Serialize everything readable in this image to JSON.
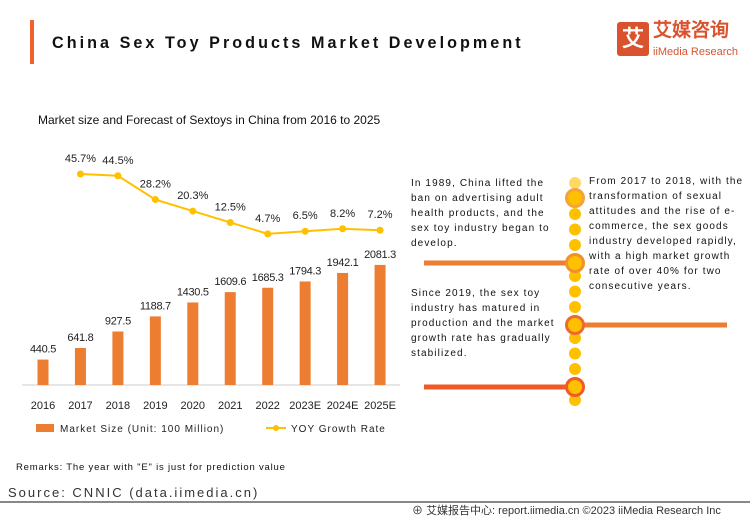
{
  "header": {
    "title": "China Sex Toy Products Market Development",
    "logo_icon": "艾",
    "logo_cn": "艾媒咨询",
    "logo_en": "iiMedia Research",
    "accent": "#f0612e"
  },
  "chart_data": {
    "type": "bar+line",
    "title": "Market size and Forecast of Sextoys in China from 2016 to 2025",
    "categories": [
      "2016",
      "2017",
      "2018",
      "2019",
      "2020",
      "2021",
      "2022",
      "2023E",
      "2024E",
      "2025E"
    ],
    "series": [
      {
        "name": "Market Size (Unit: 100 Million)",
        "type": "bar",
        "color": "#ed7d31",
        "values": [
          440.5,
          641.8,
          927.5,
          1188.7,
          1430.5,
          1609.6,
          1685.3,
          1794.3,
          1942.1,
          2081.3
        ],
        "labels": [
          "440.5",
          "641.8",
          "927.5",
          "1188.7",
          "1430.5",
          "1609.6",
          "1685.3",
          "1794.3",
          "1942.1",
          "2081.3"
        ]
      },
      {
        "name": "YOY Growth Rate",
        "type": "line",
        "color": "#ffc000",
        "values": [
          null,
          45.7,
          44.5,
          28.2,
          20.3,
          12.5,
          4.7,
          6.5,
          8.2,
          7.2
        ],
        "labels": [
          "",
          "45.7%",
          "44.5%",
          "28.2%",
          "20.3%",
          "12.5%",
          "4.7%",
          "6.5%",
          "8.2%",
          "7.2%"
        ]
      }
    ],
    "legend": "bottom"
  },
  "timeline": {
    "text_1989": "In 1989, China lifted the ban on advertising adult health products, and the sex toy industry began to develop.",
    "text_2017": "From 2017 to 2018, with the transformation of sexual attitudes and the rise of e-commerce, the sex goods industry developed rapidly, with a high market growth rate of over 40% for two consecutive years.",
    "text_2019": "Since 2019, the sex toy industry has matured in production and the market growth rate has gradually stabilized."
  },
  "remarks": "Remarks: The year with \"E\" is just for prediction value",
  "source": "Source: CNNIC (data.iimedia.cn)",
  "footer": "艾媒报告中心: report.iimedia.cn ©2023 iiMedia Research Inc",
  "footer_icon": "globe-icon"
}
